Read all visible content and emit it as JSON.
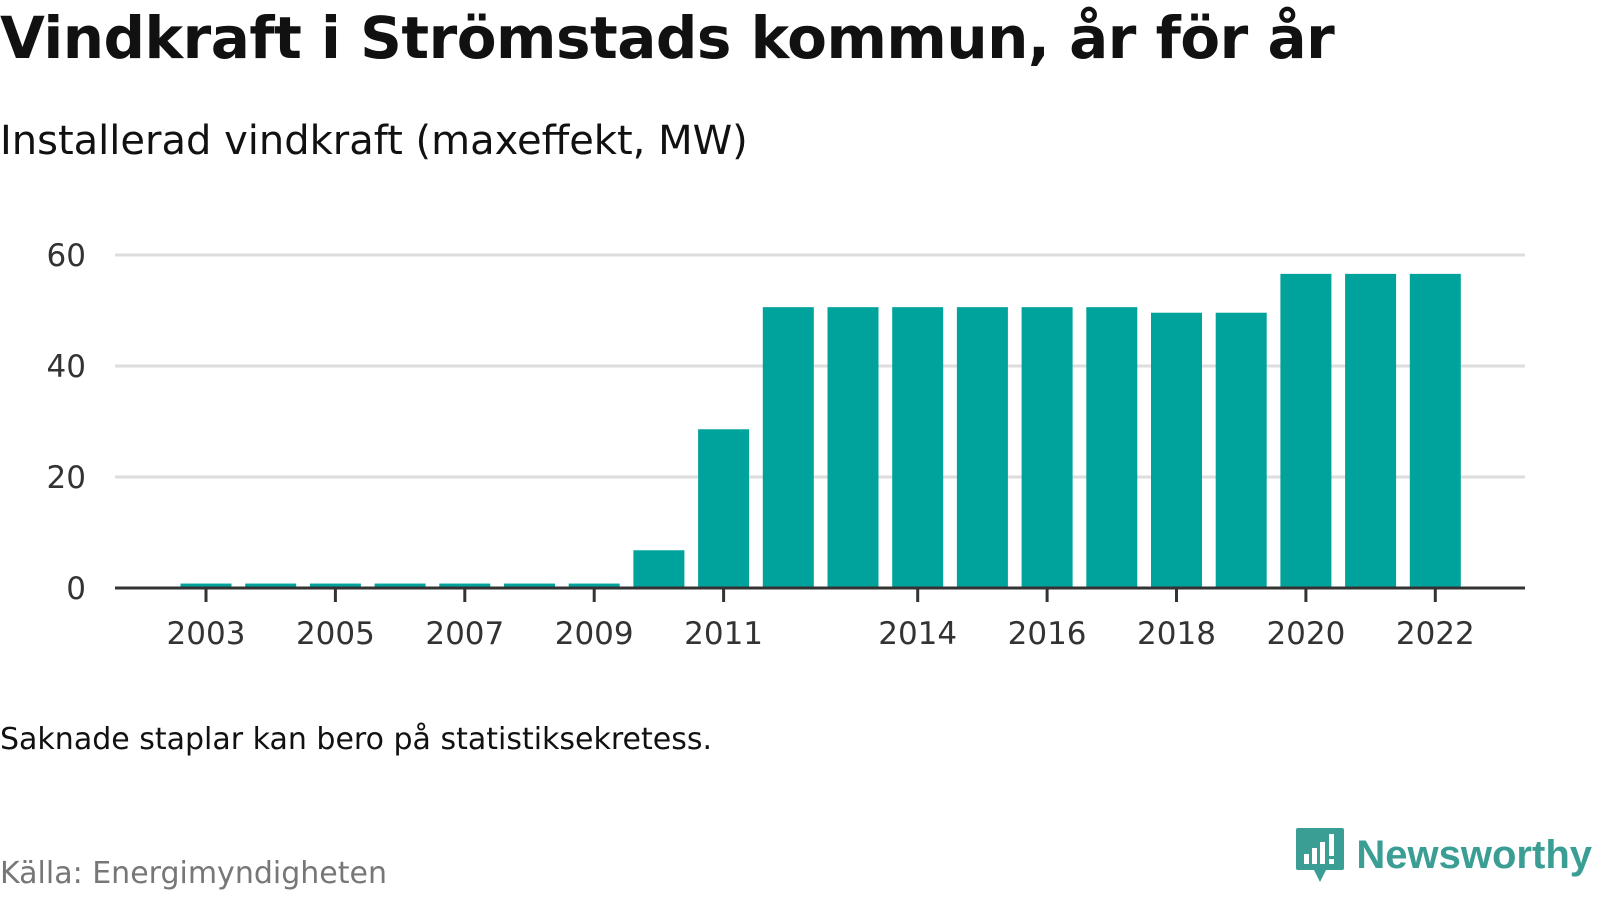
{
  "header": {
    "title": "Vindkraft i Strömstads kommun, år för år",
    "subtitle": "Installerad vindkraft (maxeffekt, MW)"
  },
  "footer": {
    "note": "Saknade staplar kan bero på statistiksekretess.",
    "source": "Källa: Energimyndigheten",
    "brand": "Newsworthy"
  },
  "colors": {
    "bar": "#00a39b",
    "grid": "#dddddd",
    "axis": "#333333",
    "brand": "#3a9e94"
  },
  "icons": {
    "brand_logo": "bar-chart-speech-bubble-icon"
  },
  "chart_data": {
    "type": "bar",
    "title": "Vindkraft i Strömstads kommun, år för år",
    "subtitle": "Installerad vindkraft (maxeffekt, MW)",
    "xlabel": "",
    "ylabel": "",
    "categories": [
      2003,
      2004,
      2005,
      2006,
      2007,
      2008,
      2009,
      2010,
      2011,
      2012,
      2013,
      2014,
      2015,
      2016,
      2017,
      2018,
      2019,
      2020,
      2021,
      2022
    ],
    "values": [
      0.8,
      0.8,
      0.8,
      0.8,
      0.8,
      0.8,
      0.8,
      6.8,
      28.6,
      50.6,
      50.6,
      50.6,
      50.6,
      50.6,
      50.6,
      49.6,
      49.6,
      56.6,
      56.6,
      56.6
    ],
    "ylim": [
      0,
      60
    ],
    "yticks": [
      0,
      20,
      40,
      60
    ],
    "xtick_labels": [
      "2003",
      "2005",
      "2007",
      "2009",
      "2011",
      "2014",
      "2016",
      "2018",
      "2020",
      "2022"
    ],
    "grid": true,
    "legend": "none"
  }
}
